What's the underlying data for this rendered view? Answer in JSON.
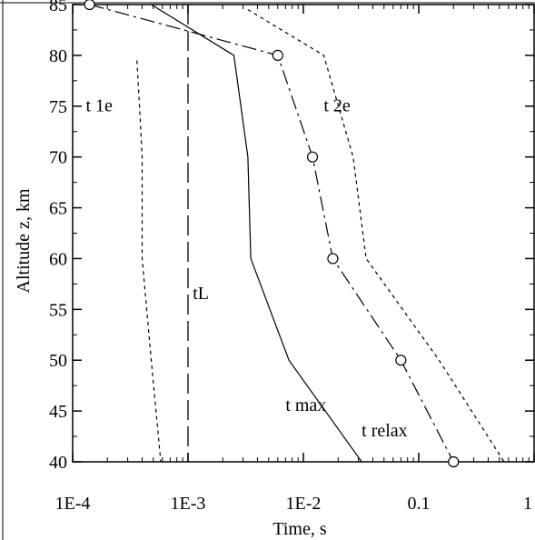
{
  "chart_data": {
    "type": "line",
    "xlabel": "Time, s",
    "ylabel": "Altitude z,  km",
    "x_scale": "log",
    "xlim": [
      0.0001,
      1
    ],
    "ylim": [
      40,
      85
    ],
    "x_ticks": [
      {
        "value": 0.0001,
        "label": "1E-4"
      },
      {
        "value": 0.001,
        "label": "1E-3"
      },
      {
        "value": 0.01,
        "label": "1E-2"
      },
      {
        "value": 0.1,
        "label": "0.1"
      },
      {
        "value": 1,
        "label": "1"
      }
    ],
    "y_ticks": [
      40,
      45,
      50,
      55,
      60,
      65,
      70,
      75,
      80,
      85
    ],
    "grid": false,
    "series": [
      {
        "name": "t max",
        "style": "solid",
        "points": [
          [
            0.00048,
            85
          ],
          [
            0.0025,
            80
          ],
          [
            0.0033,
            70
          ],
          [
            0.0035,
            60
          ],
          [
            0.0075,
            50
          ],
          [
            0.032,
            40
          ]
        ]
      },
      {
        "name": "t relax",
        "style": "dash-dot",
        "marker": "circle",
        "points": [
          [
            0.00014,
            85
          ],
          [
            0.006,
            80
          ],
          [
            0.012,
            70
          ],
          [
            0.018,
            60
          ],
          [
            0.07,
            50
          ],
          [
            0.2,
            40
          ]
        ]
      },
      {
        "name": "t 1e",
        "style": "dotted",
        "points": [
          [
            0.00036,
            79.5
          ],
          [
            0.00038,
            75
          ],
          [
            0.0004,
            70
          ],
          [
            0.0004,
            60
          ],
          [
            0.00048,
            50
          ],
          [
            0.00058,
            40
          ]
        ]
      },
      {
        "name": "t 2e",
        "style": "dotted",
        "points": [
          [
            0.0033,
            84.5
          ],
          [
            0.015,
            80
          ],
          [
            0.027,
            70
          ],
          [
            0.035,
            60
          ],
          [
            0.15,
            50
          ],
          [
            0.55,
            40
          ]
        ]
      }
    ],
    "reference_lines": [
      {
        "name": "tL",
        "orientation": "vertical",
        "value": 0.001,
        "style": "long-dash"
      }
    ],
    "annotations": [
      {
        "text": "t 1e",
        "x": 0.00013,
        "y": 74.5
      },
      {
        "text": "t 2e",
        "x": 0.015,
        "y": 74.5
      },
      {
        "text": "tL",
        "x": 0.0011,
        "y": 56
      },
      {
        "text": "t max",
        "x": 0.007,
        "y": 45
      },
      {
        "text": "t relax",
        "x": 0.032,
        "y": 42.5
      }
    ]
  }
}
